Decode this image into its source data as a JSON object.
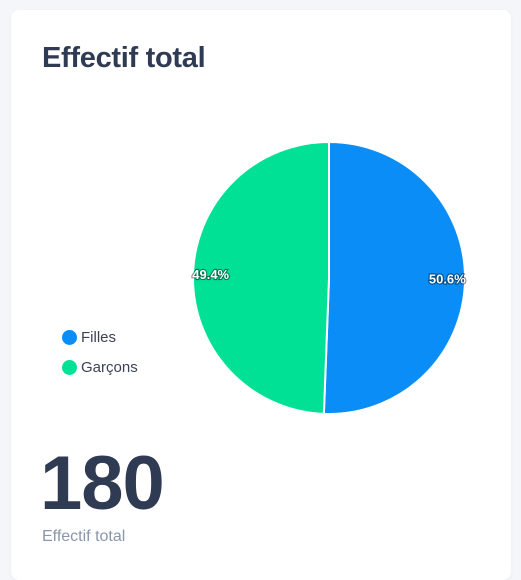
{
  "card": {
    "title": "Effectif total"
  },
  "chart_data": {
    "type": "pie",
    "categories": [
      "Filles",
      "Garçons"
    ],
    "values": [
      50.6,
      49.4
    ],
    "data_labels": [
      "50.6%",
      "49.4%"
    ],
    "colors": [
      "#0a8df7",
      "#00e196"
    ],
    "legend_position": "left"
  },
  "kpi": {
    "value": "180",
    "label": "Effectif total"
  }
}
